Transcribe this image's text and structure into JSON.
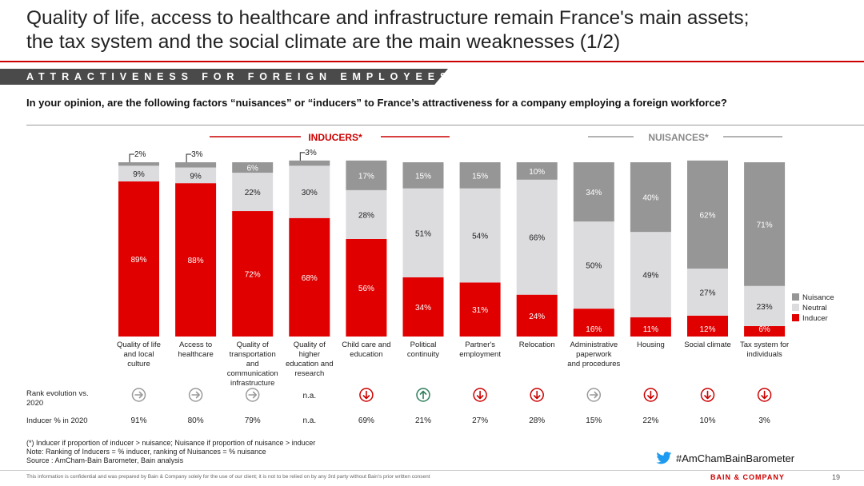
{
  "title_line1": "Quality of life, access to healthcare and infrastructure remain France's main assets;",
  "title_line2": "the tax system and the social climate are the main weaknesses (1/2)",
  "section_label": "ATTRACTIVENESS FOR FOREIGN EMPLOYEES",
  "question": "In your opinion, are the following factors “nuisances” or “inducers” to France’s attractiveness for a company employing a foreign workforce?",
  "chart_data": {
    "type": "bar",
    "stacked": true,
    "group_labels": {
      "inducers": "INDUCERS*",
      "nuisances": "NUISANCES*"
    },
    "categories": [
      "Quality of life and local culture",
      "Access to healthcare",
      "Quality of transportation and communication infrastructure",
      "Quality of higher education and research",
      "Child care and education",
      "Political continuity",
      "Partner's employment",
      "Relocation",
      "Administrative paperwork and procedures",
      "Housing",
      "Social climate",
      "Tax system for individuals"
    ],
    "category_lines": [
      [
        "Quality of life",
        "and local",
        "culture"
      ],
      [
        "Access to",
        "healthcare"
      ],
      [
        "Quality of",
        "transportation",
        "and",
        "communication",
        "infrastructure"
      ],
      [
        "Quality of",
        "higher",
        "education and",
        "research"
      ],
      [
        "Child care and",
        "education"
      ],
      [
        "Political",
        "continuity"
      ],
      [
        "Partner's",
        "employment"
      ],
      [
        "Relocation"
      ],
      [
        "Administrative",
        "paperwork",
        "and procedures"
      ],
      [
        "Housing"
      ],
      [
        "Social climate"
      ],
      [
        "Tax system for",
        "individuals"
      ]
    ],
    "series": [
      {
        "name": "Inducer",
        "color": "#e00000",
        "values": [
          89,
          88,
          72,
          68,
          56,
          34,
          31,
          24,
          16,
          11,
          12,
          6
        ]
      },
      {
        "name": "Neutral",
        "color": "#dcdcdf",
        "values": [
          9,
          9,
          22,
          30,
          28,
          51,
          54,
          66,
          50,
          49,
          27,
          23
        ]
      },
      {
        "name": "Nuisance",
        "color": "#969696",
        "values": [
          2,
          3,
          6,
          3,
          17,
          15,
          15,
          10,
          34,
          40,
          62,
          71
        ]
      }
    ],
    "legend_order": [
      "Nuisance",
      "Neutral",
      "Inducer"
    ],
    "ylim": [
      0,
      100
    ],
    "rows": {
      "rank_label": "Rank evolution vs. 2020",
      "rank": [
        "same",
        "same",
        "same",
        "n.a.",
        "down",
        "up",
        "down",
        "down",
        "same",
        "down",
        "down",
        "down"
      ],
      "na_text": "n.a.",
      "inducer2020_label": "Inducer % in 2020",
      "inducer2020": [
        "91%",
        "80%",
        "79%",
        "n.a.",
        "69%",
        "21%",
        "27%",
        "28%",
        "15%",
        "22%",
        "10%",
        "3%"
      ]
    }
  },
  "footnote_1": "(*) Inducer if proportion of inducer > nuisance; Nuisance if proportion of nuisance > inducer",
  "footnote_2": "Note: Ranking of Inducers = % inducer, ranking of Nuisances = % nuisance",
  "footnote_3": "Source : AmCham-Bain Barometer, Bain analysis",
  "hashtag": "#AmChamBainBarometer",
  "confidential": "This information is confidential and was prepared by Bain & Company solely for the use of our client; it is not to be relied on by any 3rd party without Bain's prior written consent",
  "logo": "BAIN & COMPANY",
  "page_number": "19",
  "colors": {
    "accent": "#cc0000",
    "up_arrow": "#2e7d5b",
    "down_arrow": "#cc0000",
    "same_arrow": "#9a9a9a"
  }
}
